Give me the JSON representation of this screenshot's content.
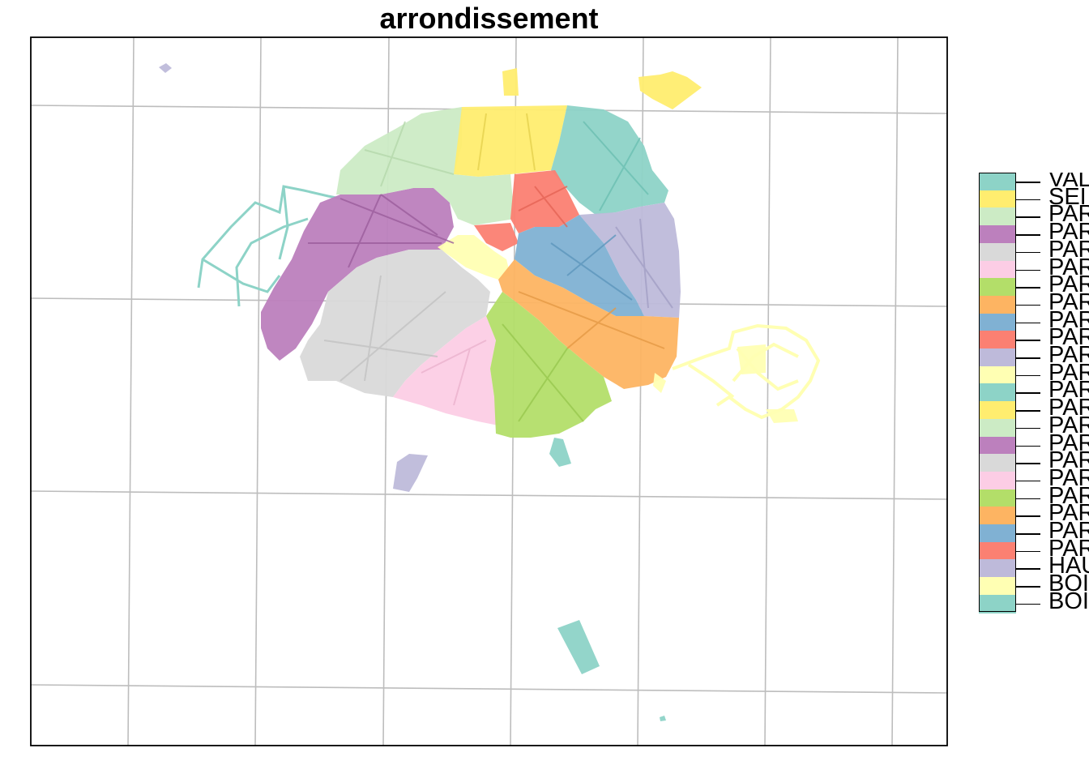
{
  "title": "arrondissement",
  "legend": {
    "items": [
      {
        "label": "VAL",
        "color": "#8DD3C7"
      },
      {
        "label": "SEI",
        "color": "#FFED6F"
      },
      {
        "label": "PAR",
        "color": "#CCEBC5"
      },
      {
        "label": "PAR",
        "color": "#BC80BD"
      },
      {
        "label": "PAR",
        "color": "#D9D9D9"
      },
      {
        "label": "PAR",
        "color": "#FCCDE5"
      },
      {
        "label": "PAR",
        "color": "#B3DE69"
      },
      {
        "label": "PAR",
        "color": "#FDB462"
      },
      {
        "label": "PAR",
        "color": "#80B1D3"
      },
      {
        "label": "PAR",
        "color": "#FB8072"
      },
      {
        "label": "PAR",
        "color": "#BEBADA"
      },
      {
        "label": "PAR",
        "color": "#FFFFB3"
      },
      {
        "label": "PAR",
        "color": "#8DD3C7"
      },
      {
        "label": "PAR",
        "color": "#FFED6F"
      },
      {
        "label": "PAR",
        "color": "#CCEBC5"
      },
      {
        "label": "PAR",
        "color": "#BC80BD"
      },
      {
        "label": "PAR",
        "color": "#D9D9D9"
      },
      {
        "label": "PAR",
        "color": "#FCCDE5"
      },
      {
        "label": "PAR",
        "color": "#B3DE69"
      },
      {
        "label": "PAR",
        "color": "#FDB462"
      },
      {
        "label": "PAR",
        "color": "#80B1D3"
      },
      {
        "label": "PAR",
        "color": "#FB8072"
      },
      {
        "label": "HAU",
        "color": "#BEBADA"
      },
      {
        "label": "BOI",
        "color": "#FFFFB3"
      },
      {
        "label": "BOI",
        "color": "#8DD3C7"
      }
    ]
  }
}
